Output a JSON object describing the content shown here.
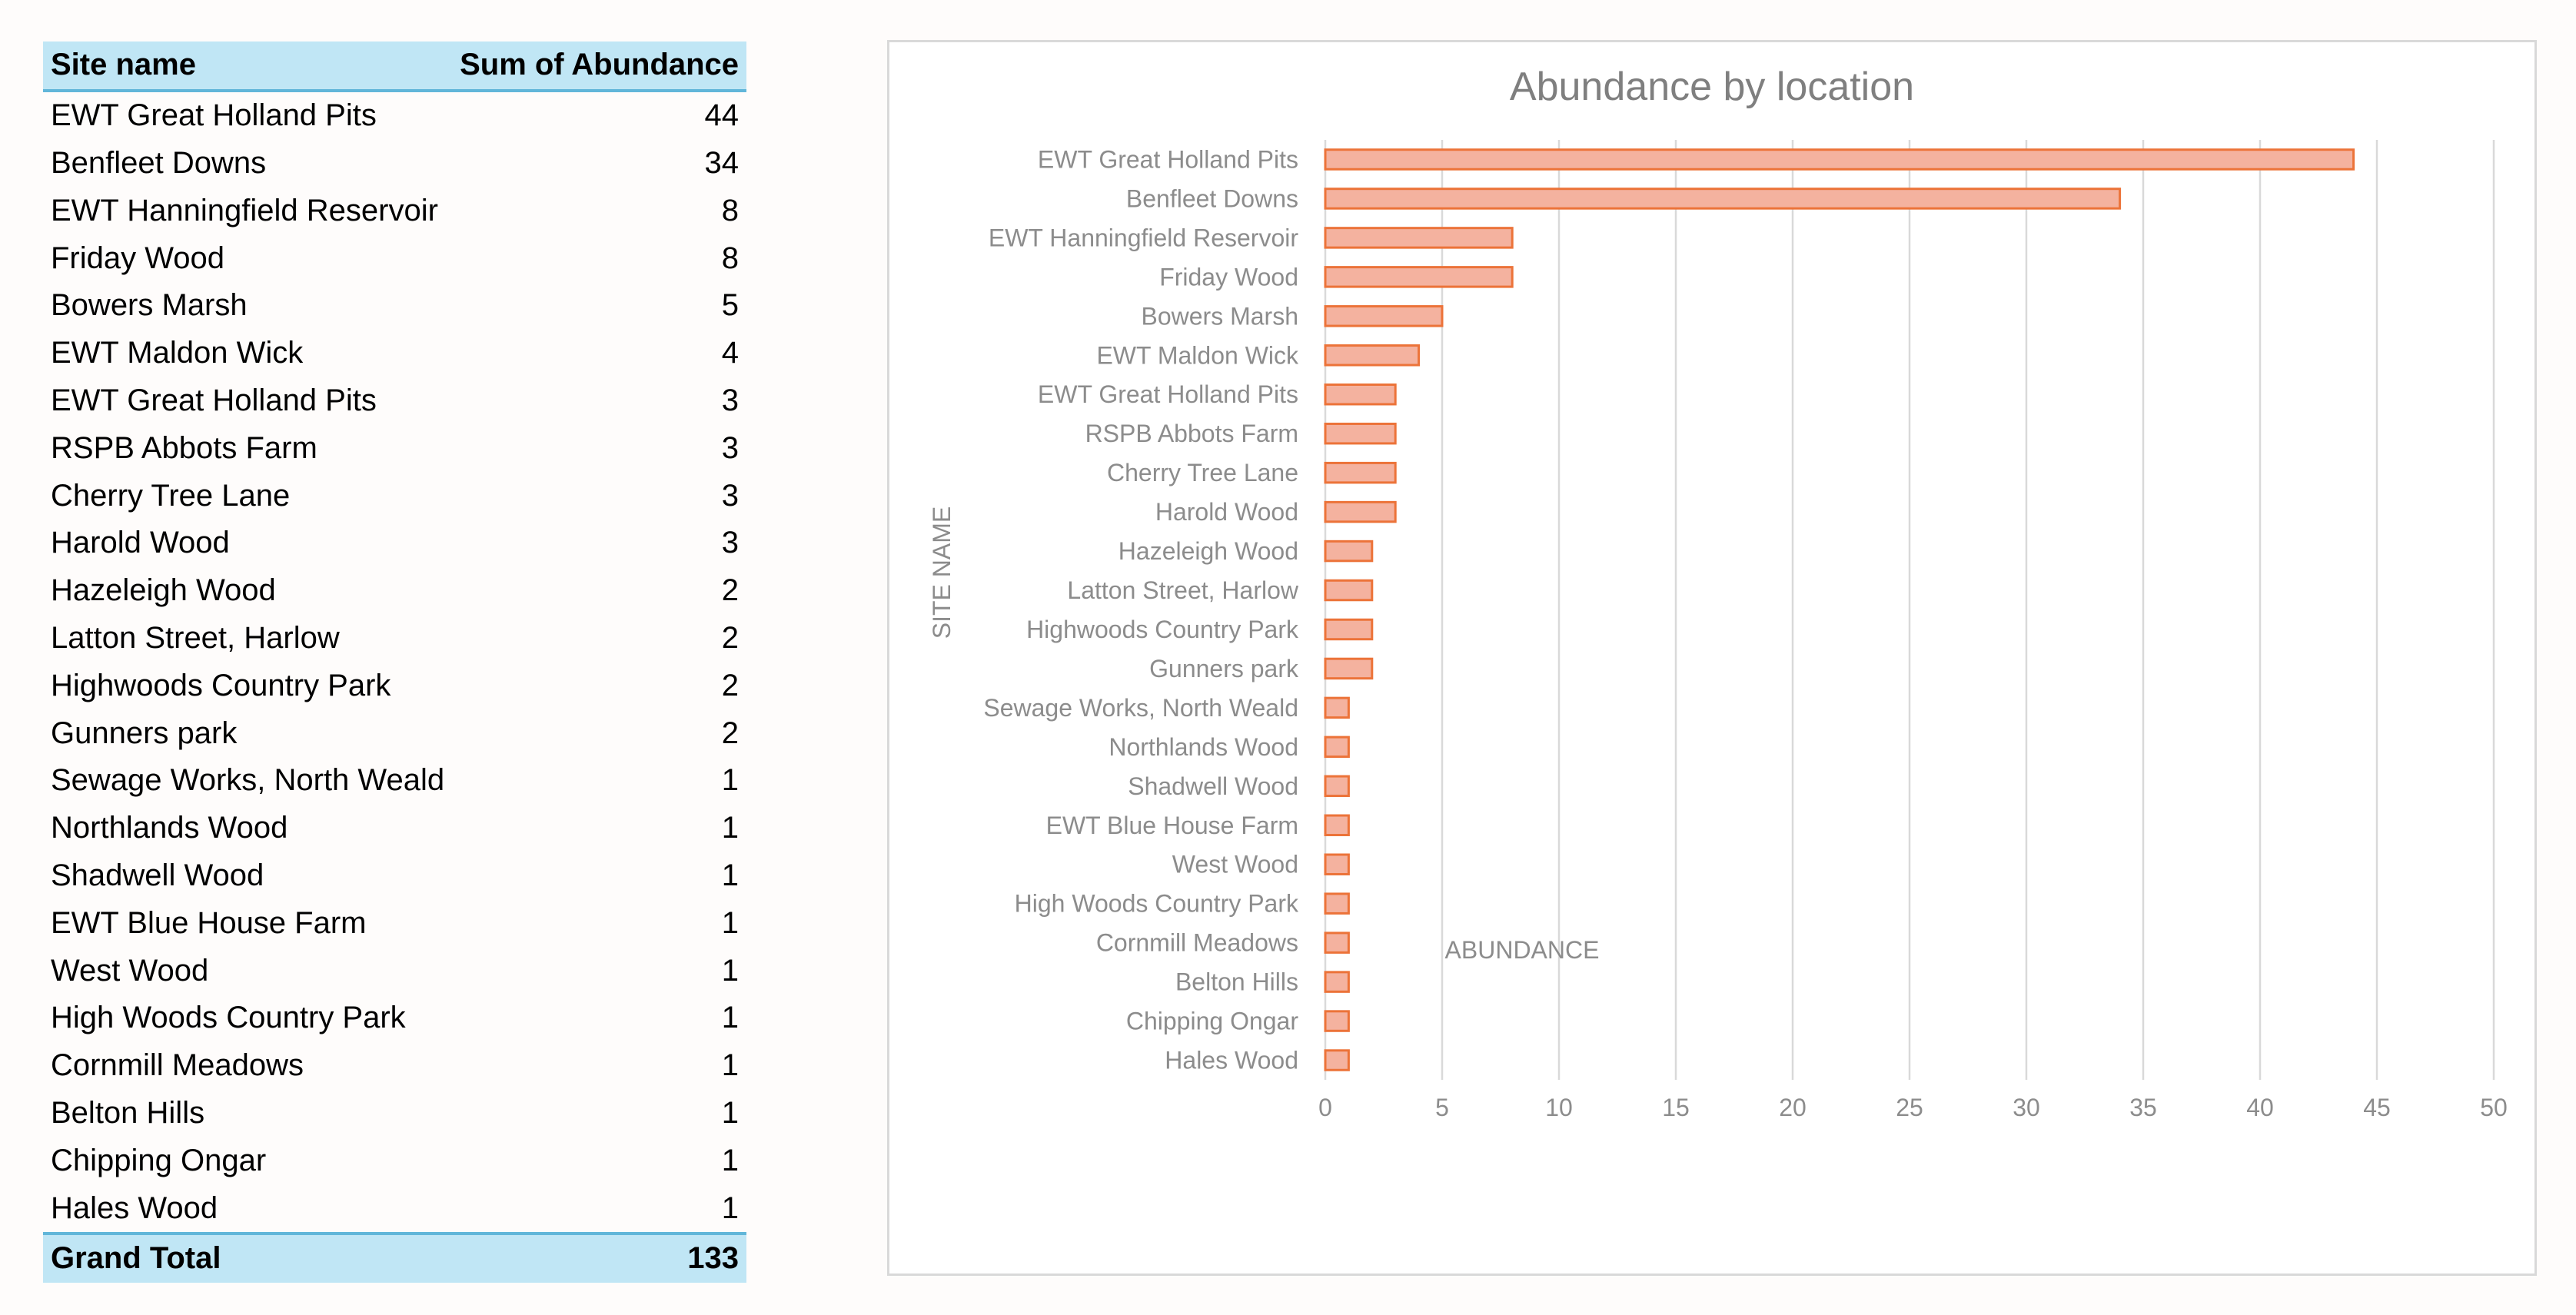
{
  "table": {
    "headers": [
      "Site name",
      "Sum of Abundance"
    ],
    "rows": [
      [
        "EWT Great Holland Pits",
        "44"
      ],
      [
        "Benfleet Downs",
        "34"
      ],
      [
        "EWT Hanningfield Reservoir",
        "8"
      ],
      [
        "Friday Wood",
        "8"
      ],
      [
        "Bowers Marsh",
        "5"
      ],
      [
        "EWT Maldon Wick",
        "4"
      ],
      [
        "EWT Great Holland Pits",
        "3"
      ],
      [
        "RSPB Abbots Farm",
        "3"
      ],
      [
        "Cherry Tree Lane",
        "3"
      ],
      [
        "Harold Wood",
        "3"
      ],
      [
        "Hazeleigh Wood",
        "2"
      ],
      [
        "Latton Street, Harlow",
        "2"
      ],
      [
        "Highwoods Country Park",
        "2"
      ],
      [
        "Gunners park",
        "2"
      ],
      [
        "Sewage Works, North Weald",
        "1"
      ],
      [
        "Northlands Wood",
        "1"
      ],
      [
        "Shadwell Wood",
        "1"
      ],
      [
        "EWT Blue House Farm",
        "1"
      ],
      [
        "West Wood",
        "1"
      ],
      [
        "High Woods Country Park",
        "1"
      ],
      [
        "Cornmill Meadows",
        "1"
      ],
      [
        "Belton Hills",
        "1"
      ],
      [
        "Chipping Ongar",
        "1"
      ],
      [
        "Hales Wood",
        "1"
      ]
    ],
    "total_label": "Grand Total",
    "total_value": "133"
  },
  "chart_data": {
    "type": "bar",
    "orientation": "horizontal",
    "title": "Abundance by location",
    "xlabel": "ABUNDANCE",
    "ylabel": "SITE NAME",
    "categories": [
      "EWT Great Holland Pits",
      "Benfleet Downs",
      "EWT Hanningfield Reservoir",
      "Friday Wood",
      "Bowers Marsh",
      "EWT Maldon Wick",
      "EWT Great Holland Pits",
      "RSPB Abbots Farm",
      "Cherry Tree Lane",
      "Harold Wood",
      "Hazeleigh Wood",
      "Latton Street, Harlow",
      "Highwoods Country Park",
      "Gunners park",
      "Sewage Works, North Weald",
      "Northlands Wood",
      "Shadwell Wood",
      "EWT Blue House Farm",
      "West Wood",
      "High Woods Country Park",
      "Cornmill Meadows",
      "Belton Hills",
      "Chipping Ongar",
      "Hales Wood"
    ],
    "values": [
      44,
      34,
      8,
      8,
      5,
      4,
      3,
      3,
      3,
      3,
      2,
      2,
      2,
      2,
      1,
      1,
      1,
      1,
      1,
      1,
      1,
      1,
      1,
      1
    ],
    "xlim": [
      0,
      50
    ],
    "xticks": [
      0,
      5,
      10,
      15,
      20,
      25,
      30,
      35,
      40,
      45,
      50
    ],
    "grid": "vertical",
    "legend": "none",
    "bar_fill": "#f4b29f",
    "bar_stroke": "#ec7339"
  }
}
